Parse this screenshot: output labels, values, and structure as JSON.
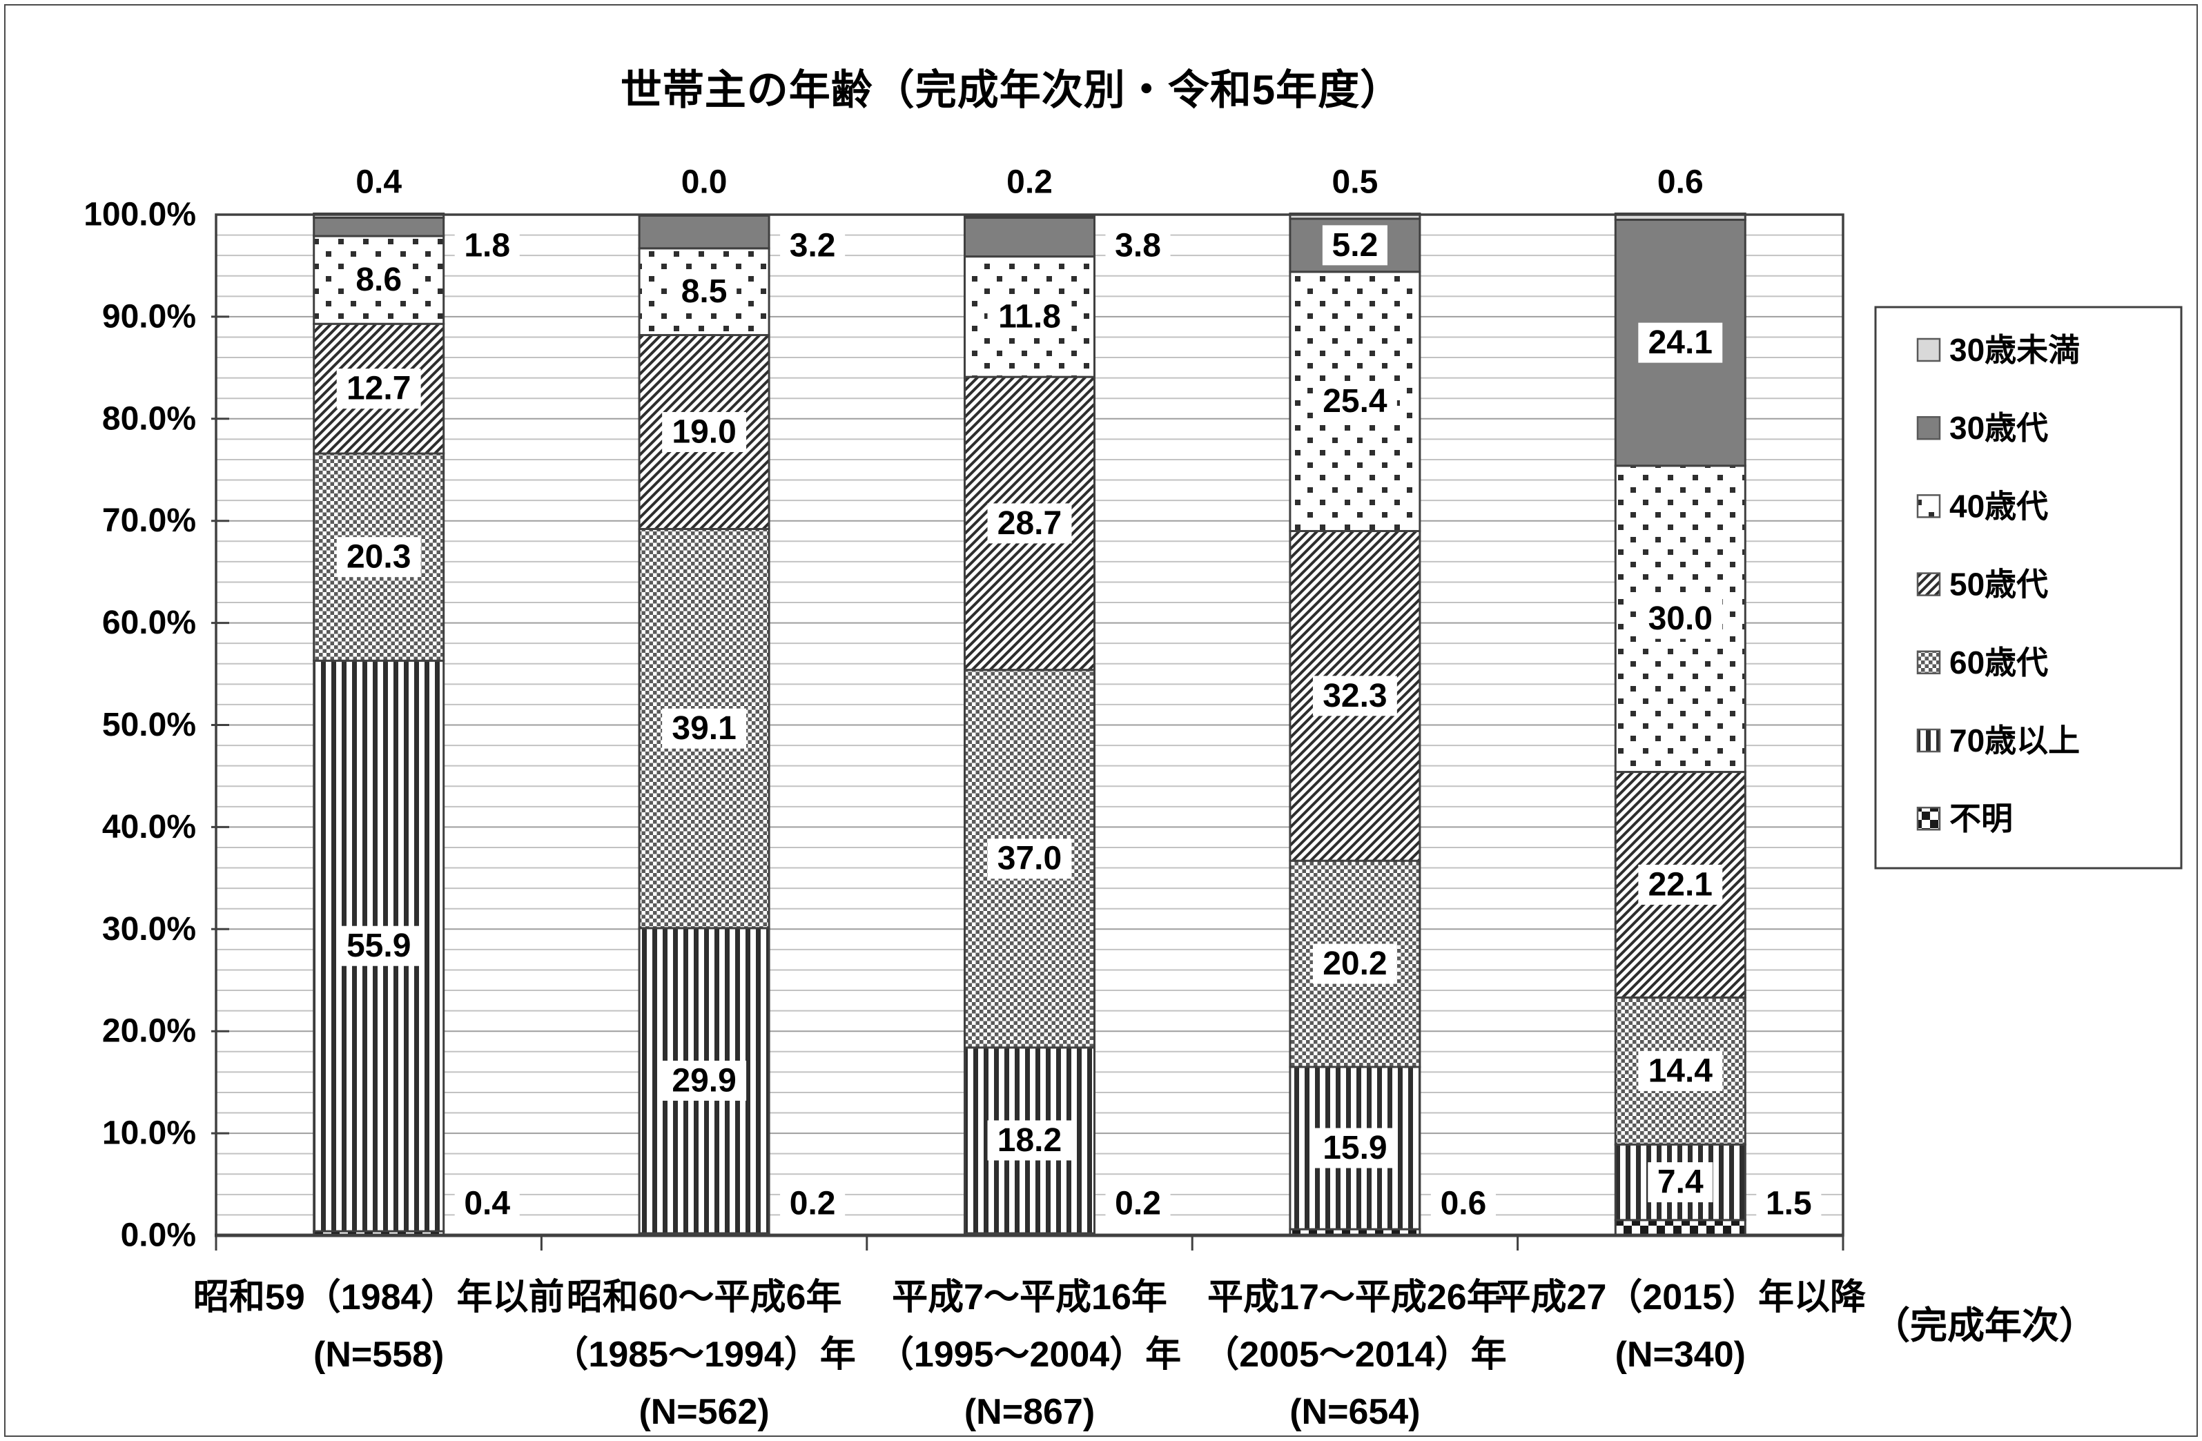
{
  "page": {
    "background": "#ffffff",
    "frame_color": "#4a4a4a"
  },
  "chart_data": {
    "type": "bar",
    "variant": "100%-stacked-column",
    "title": "世帯主の年齢（完成年次別・令和5年度）",
    "x_axis_note": "（完成年次）",
    "grid": "on",
    "legend_position": "right",
    "categories": [
      {
        "lines": [
          "昭和59（1984）年以前",
          "(N=558)"
        ]
      },
      {
        "lines": [
          "昭和60～平成6年",
          "（1985～1994）年",
          "(N=562)"
        ]
      },
      {
        "lines": [
          "平成7～平成16年",
          "（1995～2004）年",
          "(N=867)"
        ]
      },
      {
        "lines": [
          "平成17～平成26年",
          "（2005～2014）年",
          "(N=654)"
        ]
      },
      {
        "lines": [
          "平成27（2015）年以降",
          "(N=340)"
        ]
      }
    ],
    "series": [
      {
        "name": "30歳未満",
        "pattern": "solid-light",
        "values": [
          0.4,
          0.0,
          0.2,
          0.5,
          0.6
        ],
        "label_placement": "above"
      },
      {
        "name": "30歳代",
        "pattern": "solid-dark",
        "values": [
          1.8,
          3.2,
          3.8,
          5.2,
          24.1
        ],
        "label_placement": [
          "side-upper",
          "side-upper",
          "side-upper",
          "inside",
          "inside"
        ]
      },
      {
        "name": "40歳代",
        "pattern": "dots",
        "values": [
          8.6,
          8.5,
          11.8,
          25.4,
          30.0
        ],
        "label_placement": "inside"
      },
      {
        "name": "50歳代",
        "pattern": "diagonal",
        "values": [
          12.7,
          19.0,
          28.7,
          32.3,
          22.1
        ],
        "label_placement": "inside"
      },
      {
        "name": "60歳代",
        "pattern": "checker-fine",
        "values": [
          20.3,
          39.1,
          37.0,
          20.2,
          14.4
        ],
        "label_placement": "inside"
      },
      {
        "name": "70歳以上",
        "pattern": "vstripes",
        "values": [
          55.9,
          29.9,
          18.2,
          15.9,
          7.4
        ],
        "label_placement": "inside"
      },
      {
        "name": "不明",
        "pattern": "checker-coarse",
        "values": [
          0.4,
          0.2,
          0.2,
          0.6,
          1.5
        ],
        "label_placement": "side-lower"
      }
    ],
    "stack_order": "last-series-at-bottom",
    "y_axis": {
      "min": 0,
      "max": 100,
      "major_step": 10,
      "minor_step": 2,
      "tick_labels": [
        "0.0%",
        "10.0%",
        "20.0%",
        "30.0%",
        "40.0%",
        "50.0%",
        "60.0%",
        "70.0%",
        "80.0%",
        "90.0%",
        "100.0%"
      ]
    },
    "colors": {
      "solid_light": "#d9d9d9",
      "solid_dark": "#7f7f7f",
      "pattern_ink": "#2e2e2e",
      "checker_fine_ink": "#5a5a5a",
      "checker_coarse_ink": "#1a1a1a",
      "segment_border": "#404040",
      "minor_grid": "#c2c2c2",
      "major_grid": "#9e9e9e",
      "axis": "#404040",
      "label_text": "#000000"
    }
  }
}
